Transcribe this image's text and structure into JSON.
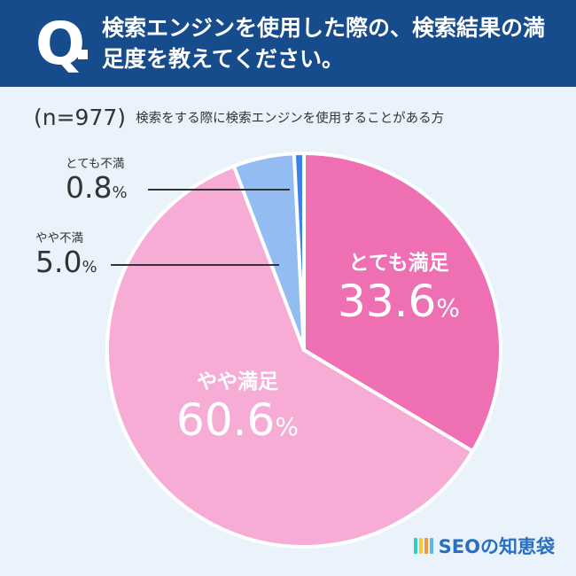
{
  "header": {
    "q_mark": "Q",
    "question": "検索エンジンを使用した際の、検索結果の満足度を教えてください。"
  },
  "sample": {
    "size": "(n=977)",
    "description": "検索をする際に検索エンジンを使用することがある方"
  },
  "chart_data": {
    "type": "pie",
    "unit": "%",
    "slices": [
      {
        "label": "とても満足",
        "value": 33.6,
        "color": "#ee6fb2"
      },
      {
        "label": "やや満足",
        "value": 60.6,
        "color": "#f6acd5"
      },
      {
        "label": "やや不満",
        "value": 5.0,
        "color": "#93bdf2"
      },
      {
        "label": "とても不満",
        "value": 0.8,
        "color": "#3a82ea"
      }
    ]
  },
  "labels": {
    "very_satisfied": {
      "cat": "とても満足",
      "num": "33.6",
      "unit": "%"
    },
    "somewhat_satisfied": {
      "cat": "やや満足",
      "num": "60.6",
      "unit": "%"
    },
    "somewhat_dissatisfied": {
      "cat": "やや不満",
      "num": "5.0",
      "unit": "%"
    },
    "very_dissatisfied": {
      "cat": "とても不満",
      "num": "0.8",
      "unit": "%"
    }
  },
  "brand": {
    "name": "SEOの知恵袋",
    "icon_colors": [
      "#2ecfc1",
      "#f7c744",
      "#f29a3a",
      "#5db8f0"
    ]
  }
}
